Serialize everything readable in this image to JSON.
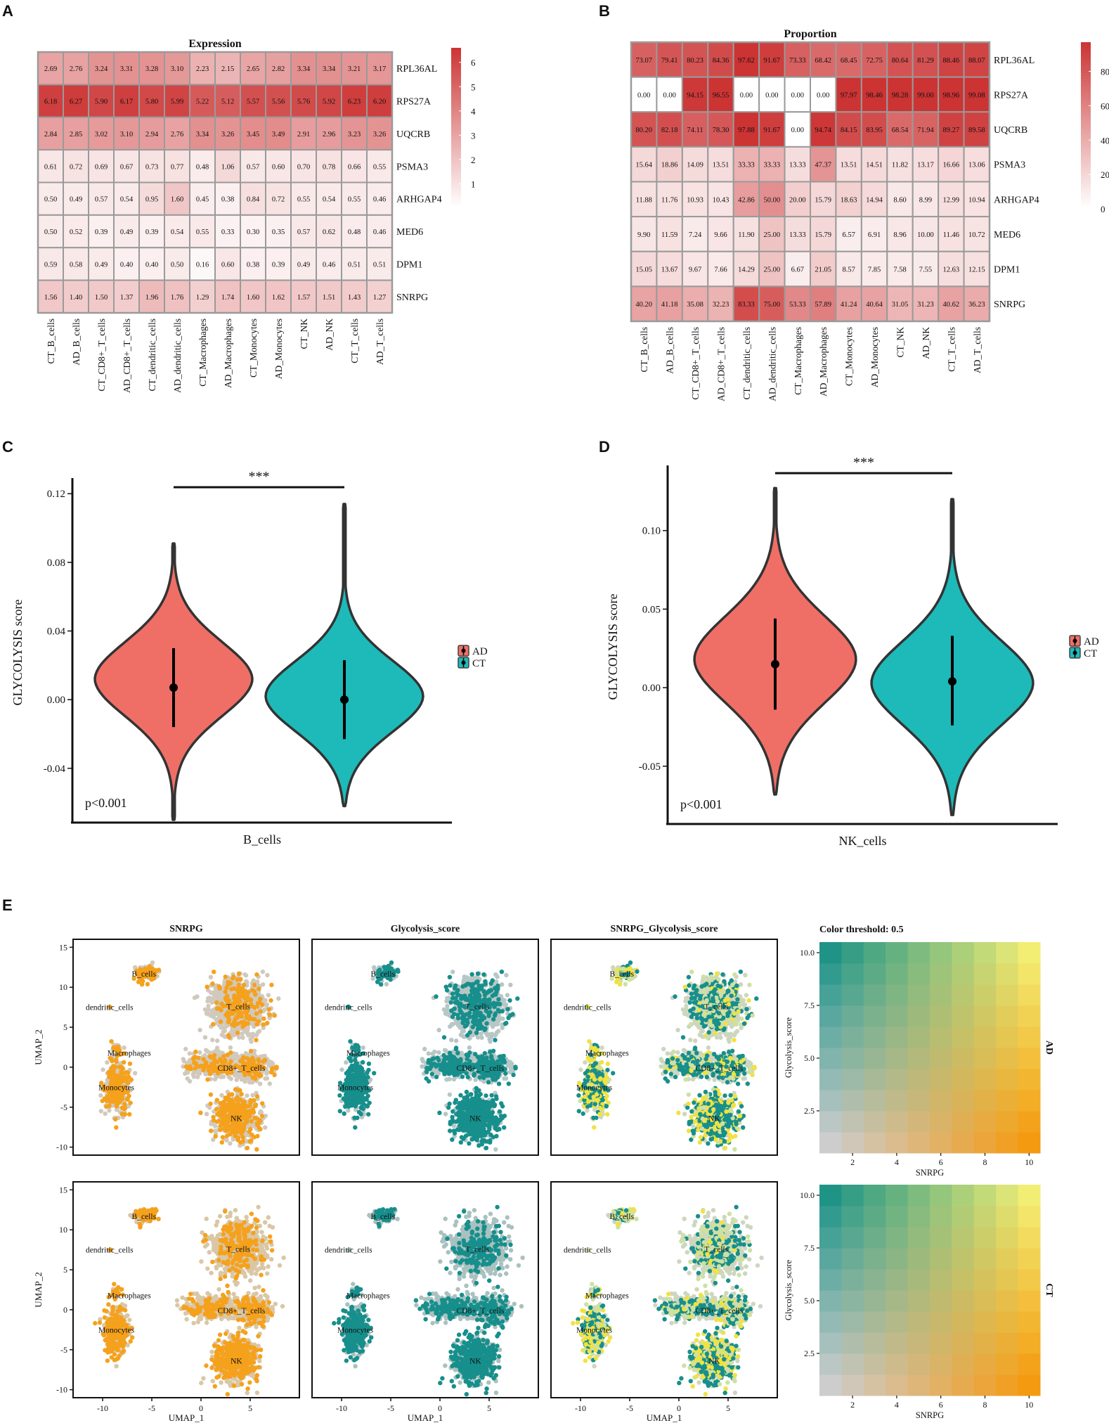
{
  "panels": {
    "a": "A",
    "b": "B",
    "c": "C",
    "d": "D",
    "e": "E"
  },
  "chart_data": [
    {
      "type": "heatmap",
      "title": "Expression",
      "rows": [
        "RPL36AL",
        "RPS27A",
        "UQCRB",
        "PSMA3",
        "ARHGAP4",
        "MED6",
        "DPM1",
        "SNRPG"
      ],
      "cols": [
        "CT_B_cells",
        "AD_B_cells",
        "CT_CD8+_T_cells",
        "AD_CD8+_T_cells",
        "CT_dendritic_cells",
        "AD_dendritic_cells",
        "CT_Macrophages",
        "AD_Macrophages",
        "CT_Monocytes",
        "AD_Monocytes",
        "CT_NK",
        "AD_NK",
        "CT_T_cells",
        "AD_T_cells"
      ],
      "values": [
        [
          2.69,
          2.76,
          3.24,
          3.31,
          3.28,
          3.1,
          2.23,
          2.15,
          2.65,
          2.82,
          3.34,
          3.34,
          3.21,
          3.17
        ],
        [
          6.18,
          6.27,
          5.9,
          6.17,
          5.8,
          5.99,
          5.22,
          5.12,
          5.57,
          5.56,
          5.76,
          5.92,
          6.23,
          6.2
        ],
        [
          2.84,
          2.85,
          3.02,
          3.1,
          2.94,
          2.76,
          3.34,
          3.26,
          3.45,
          3.49,
          2.91,
          2.96,
          3.23,
          3.26
        ],
        [
          0.61,
          0.72,
          0.69,
          0.67,
          0.73,
          0.77,
          0.48,
          1.06,
          0.57,
          0.6,
          0.7,
          0.78,
          0.66,
          0.55
        ],
        [
          0.5,
          0.49,
          0.57,
          0.54,
          0.95,
          1.6,
          0.45,
          0.38,
          0.84,
          0.72,
          0.55,
          0.54,
          0.55,
          0.46
        ],
        [
          0.5,
          0.52,
          0.39,
          0.49,
          0.39,
          0.54,
          0.55,
          0.33,
          0.3,
          0.35,
          0.57,
          0.62,
          0.48,
          0.46
        ],
        [
          0.59,
          0.58,
          0.49,
          0.4,
          0.4,
          0.5,
          0.16,
          0.6,
          0.38,
          0.39,
          0.49,
          0.46,
          0.51,
          0.51
        ],
        [
          1.56,
          1.4,
          1.5,
          1.37,
          1.96,
          1.76,
          1.29,
          1.74,
          1.6,
          1.62,
          1.57,
          1.51,
          1.43,
          1.27
        ]
      ],
      "colorbar": {
        "min": 0,
        "max": 6.6,
        "ticks": [
          "1",
          "2",
          "3",
          "4",
          "5",
          "6"
        ],
        "tick_values": [
          1,
          2,
          3,
          4,
          5,
          6
        ],
        "colors": [
          "#ffffff",
          "#cc3333"
        ]
      }
    },
    {
      "type": "heatmap",
      "title": "Proportion",
      "rows": [
        "RPL36AL",
        "RPS27A",
        "UQCRB",
        "PSMA3",
        "ARHGAP4",
        "MED6",
        "DPM1",
        "SNRPG"
      ],
      "cols": [
        "CT_B_cells",
        "AD_B_cells",
        "CT_CD8+_T_cells",
        "AD_CD8+_T_cells",
        "CT_dendritic_cells",
        "AD_dendritic_cells",
        "CT_Macrophages",
        "AD_Macrophages",
        "CT_Monocytes",
        "AD_Monocytes",
        "CT_NK",
        "AD_NK",
        "CT_T_cells",
        "AD_T_cells"
      ],
      "values": [
        [
          73.07,
          79.41,
          80.23,
          84.36,
          97.62,
          91.67,
          73.33,
          68.42,
          68.45,
          72.75,
          80.64,
          81.29,
          88.46,
          88.07
        ],
        [
          0.0,
          0.0,
          94.15,
          96.55,
          0.0,
          0.0,
          0.0,
          0.0,
          97.97,
          98.46,
          98.28,
          99.0,
          98.96,
          99.08
        ],
        [
          80.2,
          82.18,
          74.11,
          78.3,
          97.88,
          91.67,
          0.0,
          94.74,
          84.15,
          83.95,
          68.54,
          71.94,
          89.27,
          89.58
        ],
        [
          15.64,
          18.86,
          14.09,
          13.51,
          33.33,
          33.33,
          13.33,
          47.37,
          13.51,
          14.51,
          11.82,
          13.17,
          16.66,
          13.06
        ],
        [
          11.88,
          11.76,
          10.93,
          10.43,
          42.86,
          50.0,
          20.0,
          15.79,
          18.63,
          14.94,
          8.6,
          8.99,
          12.99,
          10.94
        ],
        [
          9.9,
          11.59,
          7.24,
          9.66,
          11.9,
          25.0,
          13.33,
          15.79,
          6.57,
          6.91,
          8.96,
          10.0,
          11.46,
          10.72
        ],
        [
          15.05,
          13.67,
          9.67,
          7.66,
          14.29,
          25.0,
          6.67,
          21.05,
          8.57,
          7.85,
          7.58,
          7.55,
          12.63,
          12.15
        ],
        [
          40.2,
          41.18,
          35.08,
          32.23,
          83.33,
          75.0,
          53.33,
          57.89,
          41.24,
          40.64,
          31.05,
          31.23,
          40.62,
          36.23
        ]
      ],
      "colorbar": {
        "min": 0,
        "max": 97,
        "ticks": [
          "0",
          "20",
          "40",
          "60",
          "80"
        ],
        "tick_values": [
          0,
          20,
          40,
          60,
          80
        ],
        "colors": [
          "#ffffff",
          "#cc3333"
        ]
      }
    },
    {
      "type": "violin",
      "ylabel": "GLYCOLYSIS score",
      "xlabel": "B_cells",
      "ylim": [
        -0.07,
        0.125
      ],
      "yticks": [
        "0.12",
        "0.08",
        "0.04",
        "0.00",
        "-0.04"
      ],
      "ytick_values": [
        0.12,
        0.08,
        0.04,
        0.0,
        -0.04
      ],
      "groups": [
        {
          "name": "AD",
          "color": "#ef6f66",
          "median": 0.007,
          "lo": -0.016,
          "hi": 0.03,
          "min": -0.07,
          "max": 0.091,
          "mode": 0.012,
          "spread": 0.022
        },
        {
          "name": "CT",
          "color": "#1dbab9",
          "median": 0.0,
          "lo": -0.023,
          "hi": 0.023,
          "min": -0.062,
          "max": 0.114,
          "mode": 0.002,
          "spread": 0.021
        }
      ],
      "significance": "***",
      "pvalue": "p<0.001",
      "legend": [
        "AD",
        "CT"
      ]
    },
    {
      "type": "violin",
      "ylabel": "GLYCOLYSIS score",
      "xlabel": "NK_cells",
      "ylim": [
        -0.085,
        0.137
      ],
      "yticks": [
        "0.10",
        "0.05",
        "0.00",
        "-0.05"
      ],
      "ytick_values": [
        0.1,
        0.05,
        0.0,
        -0.05
      ],
      "groups": [
        {
          "name": "AD",
          "color": "#ef6f66",
          "median": 0.015,
          "lo": -0.014,
          "hi": 0.044,
          "min": -0.068,
          "max": 0.127,
          "mode": 0.018,
          "spread": 0.028
        },
        {
          "name": "CT",
          "color": "#1dbab9",
          "median": 0.004,
          "lo": -0.024,
          "hi": 0.033,
          "min": -0.081,
          "max": 0.12,
          "mode": 0.003,
          "spread": 0.027
        }
      ],
      "significance": "***",
      "pvalue": "p<0.001",
      "legend": [
        "AD",
        "CT"
      ]
    },
    {
      "type": "scatter",
      "subplot_titles": [
        "SNRPG",
        "Glycolysis_score",
        "SNRPG_Glycolysis_score"
      ],
      "xlabel": "UMAP_1",
      "ylabel": "UMAP_2",
      "xlim": [
        -13,
        10
      ],
      "ylim": [
        -11,
        16
      ],
      "xticks": [
        -10,
        -5,
        0,
        5
      ],
      "yticks": [
        15,
        10,
        5,
        0,
        -5,
        -10
      ],
      "rows": [
        "AD",
        "CT"
      ],
      "clusters": [
        {
          "name": "B_cells",
          "x": -5.8,
          "y": 11.7
        },
        {
          "name": "dendritic_cells",
          "x": -9.3,
          "y": 7.5
        },
        {
          "name": "Macrophages",
          "x": -7.3,
          "y": 1.8
        },
        {
          "name": "Monocytes",
          "x": -8.6,
          "y": -2.5
        },
        {
          "name": "T_cells",
          "x": 3.8,
          "y": 7.6
        },
        {
          "name": "CD8+_T_cells",
          "x": 4.1,
          "y": -0.1
        },
        {
          "name": "NK",
          "x": 3.6,
          "y": -6.4
        }
      ],
      "point_colors": {
        "base": "#c9c9c9",
        "snrpg": "#f5a11c",
        "glyco": "#178f8c",
        "blend_high": "#f1e241"
      }
    },
    {
      "type": "heatmap",
      "title": "Color threshold: 0.5",
      "xlabel": "SNRPG",
      "ylabel": "Glycolysis_score",
      "grid_size": 10,
      "xticks": [
        2,
        4,
        6,
        8,
        10
      ],
      "yticks": [
        "10.0",
        "7.5",
        "5.0",
        "2.5"
      ],
      "ytick_values": [
        10,
        7.5,
        5,
        2.5
      ],
      "facet_labels": [
        "AD",
        "CT"
      ],
      "corner_colors": {
        "low": "#cdcdcd",
        "x_high": "#f39a10",
        "y_high": "#1f9486",
        "both_high": "#f2ee74"
      }
    }
  ]
}
